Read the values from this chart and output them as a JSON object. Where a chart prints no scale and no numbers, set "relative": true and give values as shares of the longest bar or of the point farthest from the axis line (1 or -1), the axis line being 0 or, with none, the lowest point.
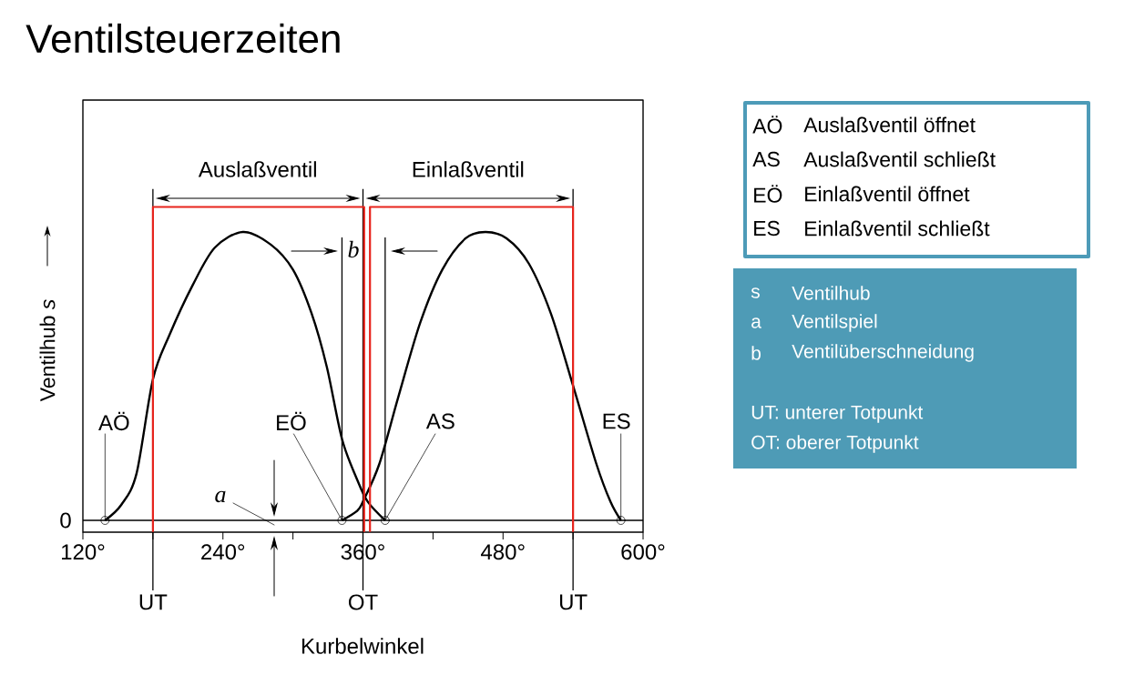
{
  "chart_data": {
    "type": "line",
    "title": "Ventilsteuerzeiten",
    "xlabel": "Kurbelwinkel",
    "ylabel": "Ventilhub *s*",
    "relative": true,
    "xlim": [
      120,
      600
    ],
    "xticks": [
      {
        "value": 120,
        "label": "120°"
      },
      {
        "value": 180,
        "label": null
      },
      {
        "value": 240,
        "label": "240°"
      },
      {
        "value": 300,
        "label": null
      },
      {
        "value": 360,
        "label": "360°"
      },
      {
        "value": 420,
        "label": null
      },
      {
        "value": 480,
        "label": "480°"
      },
      {
        "value": 540,
        "label": null
      },
      {
        "value": 600,
        "label": "600°"
      }
    ],
    "series": [
      {
        "color": "#000000",
        "x": [
          139,
          153,
          166,
          180,
          194,
          214,
          233,
          257,
          281,
          300,
          316,
          329,
          342,
          355,
          364,
          379
        ],
        "values": [
          0,
          0.05,
          0.15,
          0.45,
          0.59,
          0.75,
          0.87,
          0.92,
          0.88,
          0.8,
          0.66,
          0.49,
          0.26,
          0.13,
          0.06,
          0
        ]
      },
      {
        "color": "#000000",
        "x": [
          342,
          355,
          360,
          374,
          390,
          409,
          428,
          448,
          465,
          483,
          502,
          521,
          540,
          560,
          572,
          581
        ],
        "values": [
          0,
          0.03,
          0.06,
          0.18,
          0.39,
          0.63,
          0.8,
          0.9,
          0.92,
          0.9,
          0.82,
          0.66,
          0.43,
          0.18,
          0.06,
          0
        ]
      },
      {
        "color": "#e8241c",
        "x": [
          180,
          180,
          361,
          361
        ],
        "values": [
          -0.037,
          1,
          1,
          -0.037
        ]
      },
      {
        "color": "#e8241c",
        "x": [
          366,
          366,
          540,
          540
        ],
        "values": [
          -0.037,
          1,
          1,
          -0.037
        ]
      }
    ],
    "ref_lines": [
      {
        "axis": "x",
        "value": 180,
        "label": "UT"
      },
      {
        "axis": "x",
        "value": 360,
        "label": "OT"
      },
      {
        "axis": "x",
        "value": 540,
        "label": "UT"
      },
      {
        "axis": "x",
        "value": 342,
        "label": null
      },
      {
        "axis": "x",
        "value": 379,
        "label": null
      }
    ],
    "annotations": [
      "0",
      "Auslaßventil",
      "Einlaßventil",
      {
        "text": "AÖ",
        "x": 139,
        "y": 0
      },
      {
        "text": "EÖ",
        "x": 342,
        "y": 0
      },
      {
        "text": "AS",
        "x": 379,
        "y": 0
      },
      {
        "text": "ES",
        "x": 581,
        "y": 0
      },
      "a",
      "b",
      "AÖ",
      "Auslaßventil öffnet",
      "AS",
      "Auslaßventil schließt",
      "EÖ",
      "Einlaßventil öffnet",
      "ES",
      "Einlaßventil schließt",
      "s",
      "Ventilhub",
      "a",
      "Ventilspiel",
      "b",
      "Ventilüberschneidung",
      "UT: unterer Totpunkt",
      "OT: oberer Totpunkt"
    ]
  }
}
